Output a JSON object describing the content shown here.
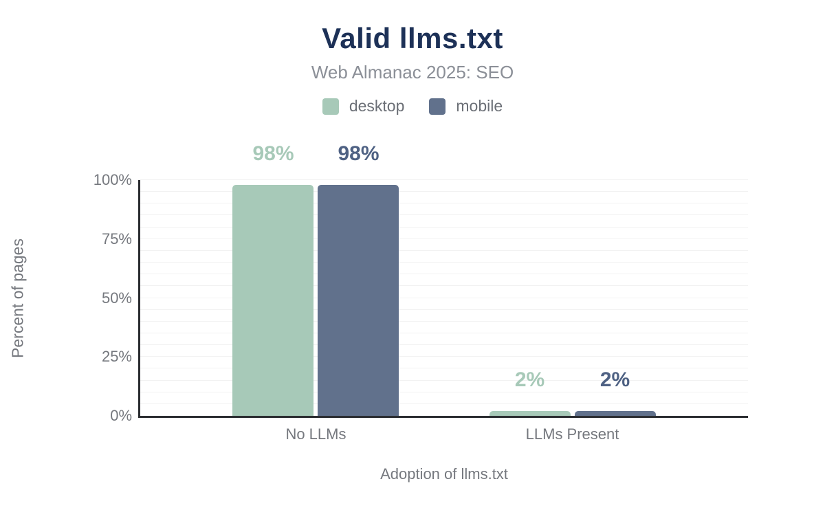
{
  "header": {
    "title": "Valid llms.txt",
    "subtitle": "Web Almanac 2025: SEO"
  },
  "colors": {
    "title": "#1d3157",
    "subtitle": "#8b8f97",
    "axis_text": "#75787e",
    "axis_line": "#2b2d31",
    "gridline": "#f2f2f2",
    "desktop": "#a7c9b8",
    "mobile": "#61718c",
    "desktop_label": "#a7c9b8",
    "mobile_label": "#4e6183"
  },
  "chart_data": {
    "type": "bar",
    "title": "Valid llms.txt",
    "subtitle": "Web Almanac 2025: SEO",
    "categories": [
      "No LLMs",
      "LLMs Present"
    ],
    "series": [
      {
        "name": "desktop",
        "values": [
          98,
          2
        ],
        "labels": [
          "98%",
          "2%"
        ],
        "color": "#a7c9b8",
        "label_color": "#a7c9b8"
      },
      {
        "name": "mobile",
        "values": [
          98,
          2
        ],
        "labels": [
          "98%",
          "2%"
        ],
        "color": "#61718c",
        "label_color": "#4e6183"
      }
    ],
    "xlabel": "Adoption of llms.txt",
    "ylabel": "Percent of pages",
    "ylim": [
      0,
      100
    ],
    "yticks": [
      {
        "value": 0,
        "label": "0%"
      },
      {
        "value": 25,
        "label": "25%"
      },
      {
        "value": 50,
        "label": "50%"
      },
      {
        "value": 75,
        "label": "75%"
      },
      {
        "value": 100,
        "label": "100%"
      }
    ],
    "grid": true,
    "grid_step": 5,
    "legend_position": "top"
  }
}
